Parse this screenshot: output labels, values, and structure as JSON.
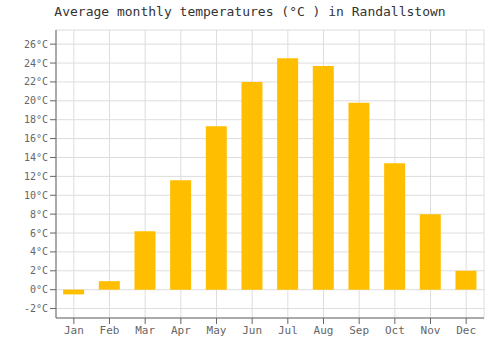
{
  "chart_data": {
    "type": "bar",
    "title": "Average monthly temperatures (°C ) in Randallstown",
    "categories": [
      "Jan",
      "Feb",
      "Mar",
      "Apr",
      "May",
      "Jun",
      "Jul",
      "Aug",
      "Sep",
      "Oct",
      "Nov",
      "Dec"
    ],
    "values": [
      -0.5,
      0.9,
      6.2,
      11.6,
      17.3,
      22.0,
      24.5,
      23.7,
      19.8,
      13.4,
      8.0,
      2.0
    ],
    "color": "#FFBF00",
    "ylim": [
      -3,
      27.5
    ],
    "yticks": [
      {
        "value": -2,
        "label": "-2°C"
      },
      {
        "value": 0,
        "label": "0°C"
      },
      {
        "value": 2,
        "label": "2°C"
      },
      {
        "value": 4,
        "label": "4°C"
      },
      {
        "value": 6,
        "label": "6°C"
      },
      {
        "value": 8,
        "label": "8°C"
      },
      {
        "value": 10,
        "label": "10°C"
      },
      {
        "value": 12,
        "label": "12°C"
      },
      {
        "value": 14,
        "label": "14°C"
      },
      {
        "value": 16,
        "label": "16°C"
      },
      {
        "value": 18,
        "label": "18°C"
      },
      {
        "value": 20,
        "label": "20°C"
      },
      {
        "value": 22,
        "label": "22°C"
      },
      {
        "value": 24,
        "label": "24°C"
      },
      {
        "value": 26,
        "label": "26°C"
      }
    ],
    "grid": true
  }
}
